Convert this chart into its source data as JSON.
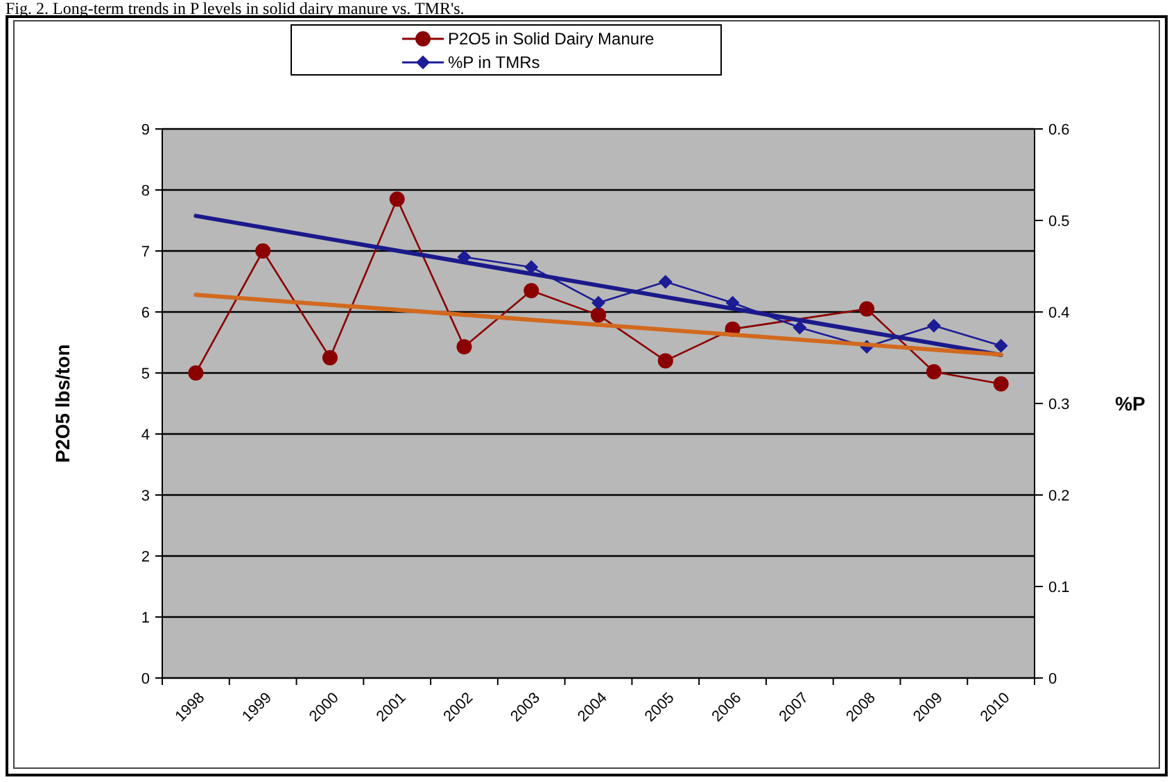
{
  "chart_data": {
    "type": "line",
    "title": "Fig. 2. Long-term trends in P levels in solid dairy manure vs. TMR's.",
    "ylabel": "P2O5 lbs/ton",
    "y2label": "%P",
    "categories": [
      "1998",
      "1999",
      "2000",
      "2001",
      "2002",
      "2003",
      "2004",
      "2005",
      "2006",
      "2007",
      "2008",
      "2009",
      "2010"
    ],
    "series": [
      {
        "name": "P2O5 in Solid Dairy Manure",
        "color": "#8b0000",
        "marker": "circle",
        "values": [
          5.0,
          7.0,
          5.25,
          7.85,
          5.43,
          6.35,
          5.95,
          5.2,
          5.72,
          null,
          6.05,
          5.02,
          4.82
        ]
      },
      {
        "name": "%P in TMRs",
        "color": "#1c1c96",
        "marker": "diamond",
        "axis": "y2",
        "values": [
          null,
          null,
          null,
          null,
          0.46,
          0.449,
          0.41,
          0.433,
          0.41,
          0.383,
          0.362,
          0.385,
          0.363
        ]
      },
      {
        "type": "line",
        "color": "#1a1a8c",
        "marker": "none",
        "axis": "y2",
        "values": [
          0.505,
          null,
          null,
          null,
          null,
          null,
          null,
          null,
          null,
          null,
          null,
          null,
          0.353
        ]
      },
      {
        "type": "line",
        "color": "#d2691e",
        "marker": "none",
        "values": [
          6.28,
          null,
          null,
          null,
          null,
          null,
          null,
          null,
          null,
          null,
          null,
          null,
          5.3
        ]
      }
    ],
    "ylim": [
      0,
      9
    ],
    "yticks": [
      0,
      1,
      2,
      3,
      4,
      5,
      6,
      7,
      8,
      9
    ],
    "y2lim": [
      0,
      0.6
    ],
    "y2ticks": [
      0,
      0.1,
      0.2,
      0.3,
      0.4,
      0.5,
      0.6
    ],
    "grid": "y",
    "legend": "top"
  }
}
